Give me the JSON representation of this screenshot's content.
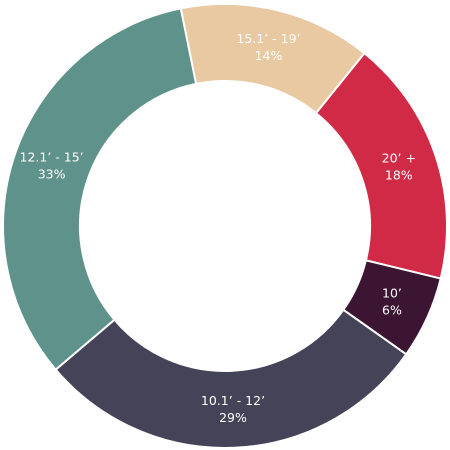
{
  "chart_data": {
    "type": "donut",
    "categories": [
      "15.1’ - 19’",
      "20’ +",
      "10’",
      "10.1’ - 12’",
      "12.1’ - 15’"
    ],
    "values": [
      14,
      18,
      6,
      29,
      33
    ],
    "value_labels": [
      "14%",
      "18%",
      "6%",
      "29%",
      "33%"
    ],
    "colors": [
      "#e9c9a1",
      "#d02a46",
      "#3b1531",
      "#454357",
      "#5f928a"
    ]
  }
}
